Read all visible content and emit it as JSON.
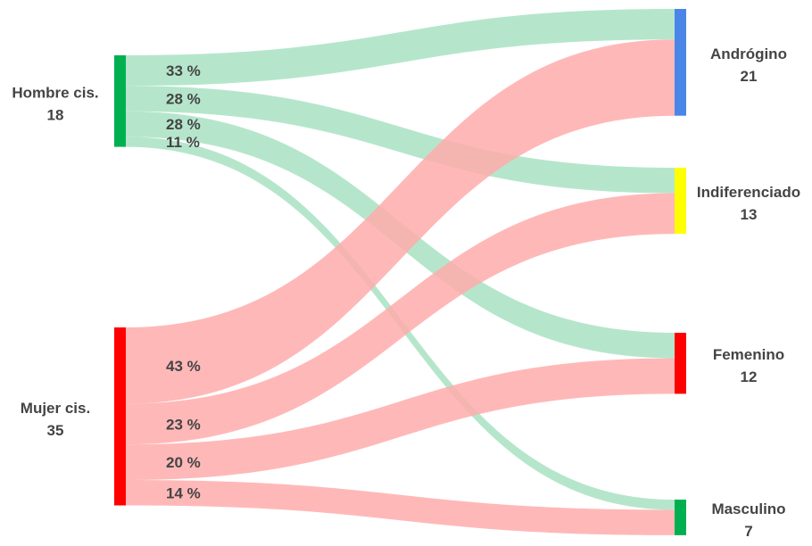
{
  "chart_data": {
    "type": "sankey",
    "sources": [
      {
        "id": "hombre",
        "label": "Hombre cis.",
        "value": 18,
        "color": "#00b050"
      },
      {
        "id": "mujer",
        "label": "Mujer cis.",
        "value": 35,
        "color": "#ff0000"
      }
    ],
    "targets": [
      {
        "id": "androgino",
        "label": "Andrógino",
        "value": 21,
        "color": "#4a86e8"
      },
      {
        "id": "indiferenciado",
        "label": "Indiferenciado",
        "value": 13,
        "color": "#ffff00"
      },
      {
        "id": "femenino",
        "label": "Femenino",
        "value": 12,
        "color": "#ff0000"
      },
      {
        "id": "masculino",
        "label": "Masculino",
        "value": 7,
        "color": "#00b050"
      }
    ],
    "flows": [
      {
        "source": "hombre",
        "target": "androgino",
        "value": 6,
        "percent_label": "33 %"
      },
      {
        "source": "hombre",
        "target": "indiferenciado",
        "value": 5,
        "percent_label": "28 %"
      },
      {
        "source": "hombre",
        "target": "femenino",
        "value": 5,
        "percent_label": "28 %"
      },
      {
        "source": "hombre",
        "target": "masculino",
        "value": 2,
        "percent_label": "11 %"
      },
      {
        "source": "mujer",
        "target": "androgino",
        "value": 15,
        "percent_label": "43 %"
      },
      {
        "source": "mujer",
        "target": "indiferenciado",
        "value": 8,
        "percent_label": "23 %"
      },
      {
        "source": "mujer",
        "target": "femenino",
        "value": 7,
        "percent_label": "20 %"
      },
      {
        "source": "mujer",
        "target": "masculino",
        "value": 5,
        "percent_label": "14 %"
      }
    ],
    "flow_colors": {
      "hombre": "#a8e2c2",
      "mujer": "#ffacac"
    }
  }
}
